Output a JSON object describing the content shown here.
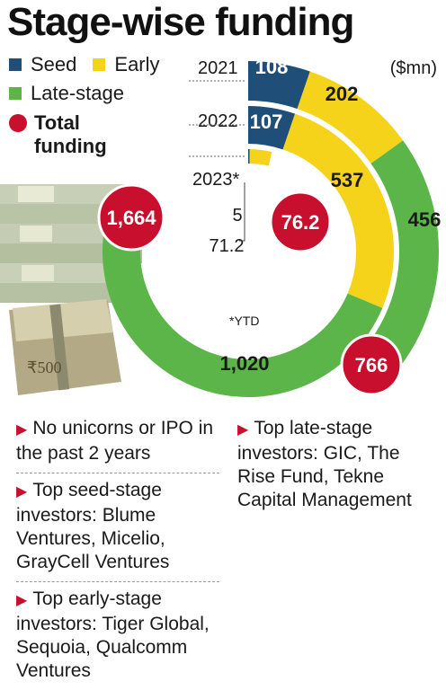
{
  "title": "Stage-wise funding",
  "unit": "($mn)",
  "ytd_note": "*YTD",
  "legend": {
    "seed": "Seed",
    "early": "Early",
    "late": "Late-stage",
    "total": "Total funding"
  },
  "colors": {
    "seed": "#1f4e79",
    "early": "#f5d31b",
    "late": "#5cb548",
    "total": "#c8102e"
  },
  "chart_data": {
    "type": "donut",
    "title": "Stage-wise funding",
    "unit": "($mn)",
    "categories": [
      "2021",
      "2022",
      "2023*"
    ],
    "series": [
      {
        "name": "Seed",
        "values": [
          108,
          107,
          5
        ],
        "labels": [
          "108",
          "107",
          "5"
        ]
      },
      {
        "name": "Early",
        "values": [
          202,
          537,
          71.2
        ],
        "labels": [
          "202",
          "537",
          "71.2"
        ]
      },
      {
        "name": "Late-stage",
        "values": [
          456,
          1020,
          0
        ],
        "labels": [
          "456",
          "1,020",
          ""
        ]
      }
    ],
    "totals": [
      {
        "year": "2021",
        "value": 766,
        "label": "766"
      },
      {
        "year": "2022",
        "value": 1664,
        "label": "1,664"
      },
      {
        "year": "2023*",
        "value": 76.2,
        "label": "76.2"
      }
    ]
  },
  "notes": [
    {
      "text": "No unicorns or IPO in the past 2 years"
    },
    {
      "text": "Top seed-stage investors: Blume Ventures, Micelio, GrayCell Ventures"
    },
    {
      "text": "Top early-stage investors: Tiger Global, Sequoia, Qualcomm Ventures"
    },
    {
      "text": "Top late-stage investors: GIC, The Rise Fund, Tekne Capital Management"
    }
  ]
}
